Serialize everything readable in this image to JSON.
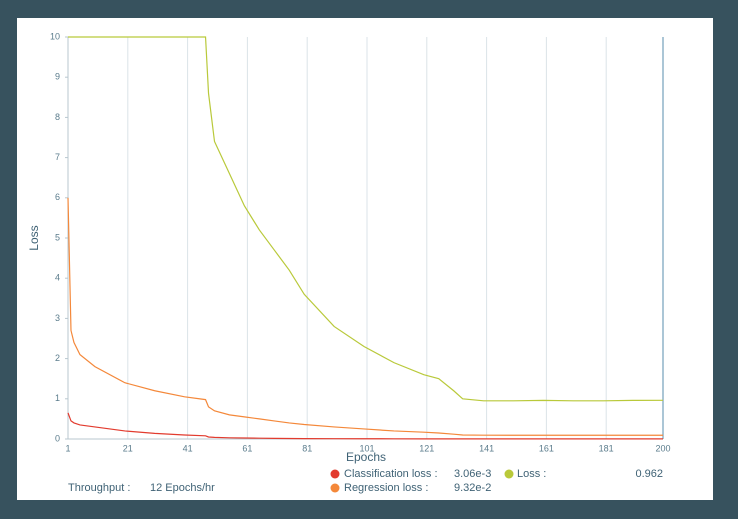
{
  "chart_data": {
    "type": "line",
    "x_label": "Epochs",
    "y_label": "Loss",
    "throughput_label": "Throughput :",
    "throughput_value": "12 Epochs/hr",
    "x": [
      1,
      2,
      3,
      5,
      10,
      20,
      30,
      40,
      47,
      48,
      50,
      55,
      60,
      65,
      70,
      75,
      80,
      90,
      100,
      110,
      120,
      125,
      130,
      133,
      140,
      150,
      160,
      170,
      180,
      190,
      200
    ],
    "series": [
      {
        "name": "Loss :",
        "color": "#b9c93a",
        "value_label": "0.962",
        "values": [
          10,
          10,
          10,
          10,
          10,
          10,
          10,
          10,
          10,
          8.6,
          7.4,
          6.6,
          5.8,
          5.2,
          4.7,
          4.2,
          3.6,
          2.8,
          2.3,
          1.9,
          1.6,
          1.5,
          1.2,
          1.0,
          0.95,
          0.95,
          0.96,
          0.95,
          0.95,
          0.96,
          0.962
        ]
      },
      {
        "name": "Classification loss :",
        "color": "#e23b2e",
        "value_label": "3.06e-3",
        "values": [
          0.65,
          0.45,
          0.4,
          0.35,
          0.3,
          0.2,
          0.14,
          0.1,
          0.08,
          0.05,
          0.04,
          0.03,
          0.025,
          0.02,
          0.015,
          0.012,
          0.01,
          0.008,
          0.006,
          0.005,
          0.004,
          0.004,
          0.003,
          0.003,
          0.003,
          0.003,
          0.003,
          0.003,
          0.003,
          0.003,
          0.00306
        ]
      },
      {
        "name": "Regression loss :",
        "color": "#f4883a",
        "value_label": "9.32e-2",
        "values": [
          6,
          2.7,
          2.4,
          2.1,
          1.8,
          1.4,
          1.2,
          1.05,
          0.98,
          0.8,
          0.7,
          0.6,
          0.55,
          0.5,
          0.45,
          0.4,
          0.36,
          0.3,
          0.25,
          0.2,
          0.17,
          0.15,
          0.12,
          0.1,
          0.095,
          0.094,
          0.093,
          0.093,
          0.093,
          0.093,
          0.0932
        ]
      }
    ],
    "xlim": [
      1,
      200
    ],
    "ylim": [
      0,
      10
    ],
    "xticks": [
      1,
      21,
      41,
      61,
      81,
      101,
      121,
      141,
      161,
      181,
      200
    ],
    "yticks": [
      0,
      1,
      2,
      3,
      4,
      5,
      6,
      7,
      8,
      9,
      10
    ],
    "grid": true
  }
}
